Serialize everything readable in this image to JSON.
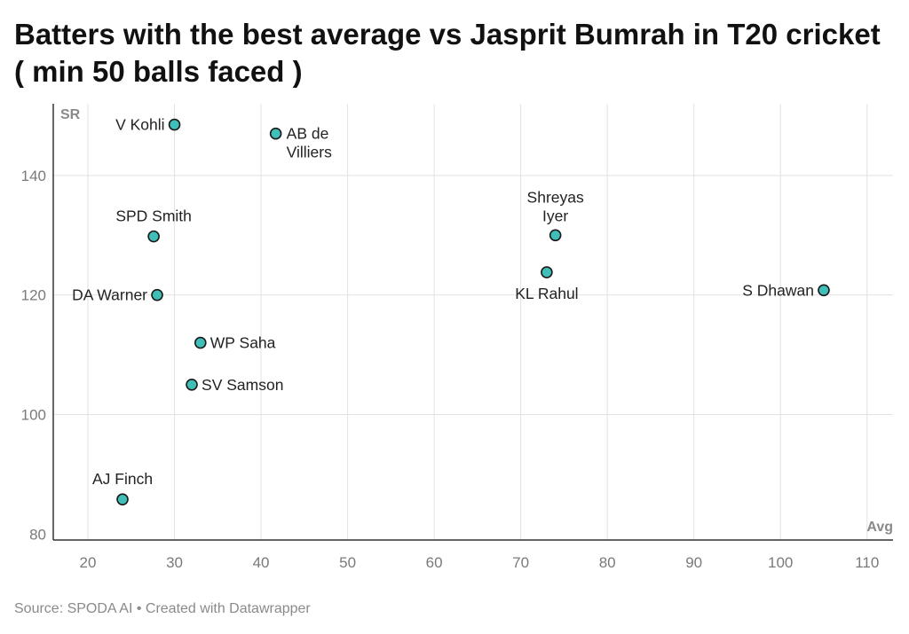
{
  "title": "Batters with the best average vs Jasprit Bumrah in T20 cricket ( min 50 balls faced )",
  "source": "Source: SPODA AI • Created with Datawrapper",
  "chart_data": {
    "type": "scatter",
    "title": "Batters with the best average vs Jasprit Bumrah in T20 cricket ( min 50 balls faced )",
    "xlabel": "Avg",
    "ylabel": "SR",
    "xlim": [
      16,
      113
    ],
    "ylim": [
      79,
      152
    ],
    "xticks": [
      20,
      30,
      40,
      50,
      60,
      70,
      80,
      90,
      100,
      110
    ],
    "yticks": [
      80,
      100,
      120,
      140
    ],
    "grid": true,
    "point_color": "#3fbfb7",
    "points": [
      {
        "label": "V Kohli",
        "x": 30,
        "y": 148.5,
        "pos": "left"
      },
      {
        "label": "AB de Villiers",
        "x": 41.7,
        "y": 147,
        "pos": "right-wrap"
      },
      {
        "label": "SPD Smith",
        "x": 27.6,
        "y": 129.8,
        "pos": "above"
      },
      {
        "label": "DA Warner",
        "x": 28,
        "y": 120,
        "pos": "left"
      },
      {
        "label": "WP Saha",
        "x": 33,
        "y": 112,
        "pos": "right"
      },
      {
        "label": "SV Samson",
        "x": 32,
        "y": 105,
        "pos": "right"
      },
      {
        "label": "AJ Finch",
        "x": 24,
        "y": 85.8,
        "pos": "above"
      },
      {
        "label": "Shreyas Iyer",
        "x": 74,
        "y": 130,
        "pos": "above-wrap"
      },
      {
        "label": "KL Rahul",
        "x": 73,
        "y": 123.8,
        "pos": "below"
      },
      {
        "label": "S Dhawan",
        "x": 105,
        "y": 120.8,
        "pos": "left"
      }
    ]
  }
}
